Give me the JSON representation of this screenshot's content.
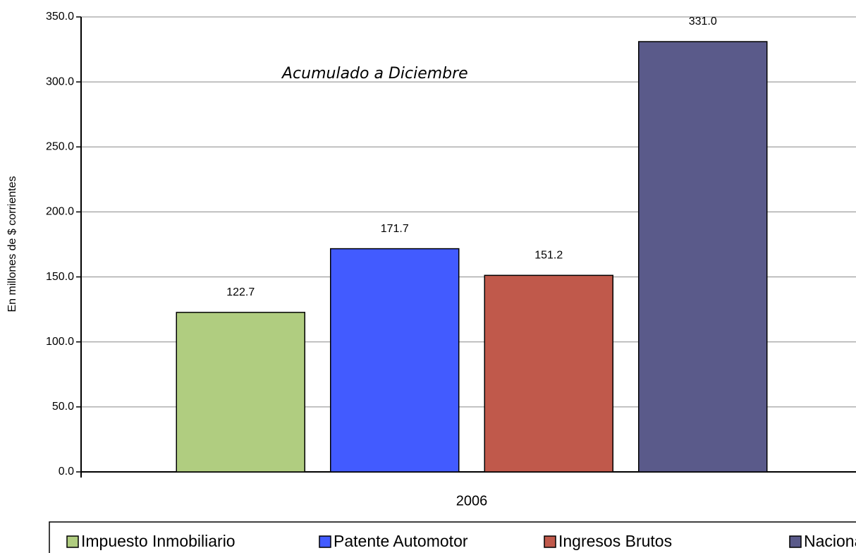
{
  "chart_data": {
    "type": "bar",
    "annotation": "Acumulado a Diciembre",
    "ylabel": "En millones de $ corrientes",
    "categories": [
      "2006"
    ],
    "series": [
      {
        "name": "Impuesto Inmobiliario",
        "color": "#b0cd80",
        "values": [
          122.7
        ],
        "value_labels": [
          "122.7"
        ]
      },
      {
        "name": "Patente Automotor",
        "color": "#425bff",
        "values": [
          171.7
        ],
        "value_labels": [
          "171.7"
        ]
      },
      {
        "name": "Ingresos Brutos",
        "color": "#c0594b",
        "values": [
          151.2
        ],
        "value_labels": [
          "151.2"
        ]
      },
      {
        "name": "Nacionales",
        "color": "#5a5a8a",
        "values": [
          331.0
        ],
        "value_labels": [
          "331.0"
        ]
      }
    ],
    "ylim": [
      0,
      350
    ],
    "yticks": [
      {
        "value": 0,
        "label": "0.0"
      },
      {
        "value": 50,
        "label": "50.0"
      },
      {
        "value": 100,
        "label": "100.0"
      },
      {
        "value": 150,
        "label": "150.0"
      },
      {
        "value": 200,
        "label": "200.0"
      },
      {
        "value": 250,
        "label": "250.0"
      },
      {
        "value": 300,
        "label": "300.0"
      },
      {
        "value": 350,
        "label": "350.0"
      }
    ],
    "grid": true,
    "legend": "bottom"
  }
}
